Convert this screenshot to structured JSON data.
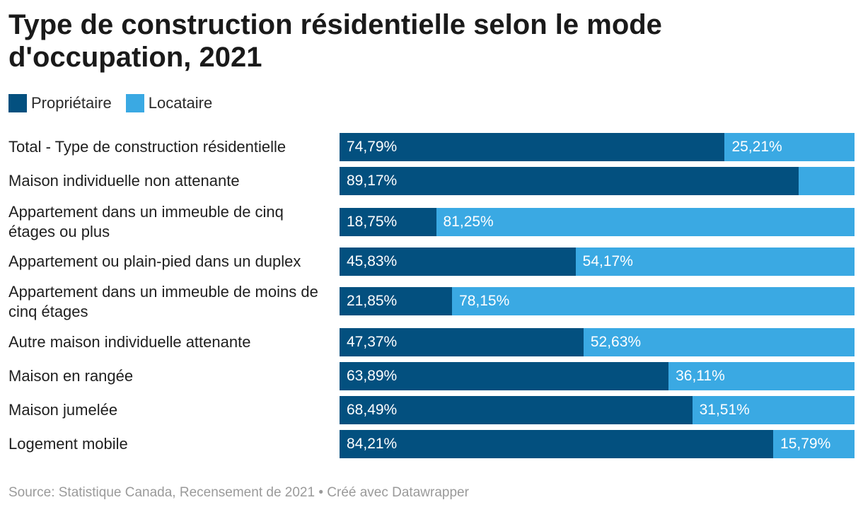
{
  "header": {
    "title": "Type de construction résidentielle selon le mode d'occupation, 2021"
  },
  "legend": {
    "items": [
      {
        "label": "Propriétaire",
        "color": "#03507f"
      },
      {
        "label": "Locataire",
        "color": "#3aa9e3"
      }
    ]
  },
  "footer": {
    "source": "Source: Statistique Canada, Recensement de 2021 • Créé avec Datawrapper"
  },
  "chart_data": {
    "type": "bar",
    "orientation": "horizontal",
    "stacked": true,
    "title": "Type de construction résidentielle selon le mode d'occupation, 2021",
    "xlim": [
      0,
      100
    ],
    "grid": false,
    "legend_position": "top-left",
    "categories": [
      "Total - Type de construction résidentielle",
      "Maison individuelle non attenante",
      "Appartement dans un immeuble de cinq étages ou plus",
      "Appartement ou plain-pied dans un duplex",
      "Appartement dans un immeuble de moins de cinq étages",
      "Autre maison individuelle attenante",
      "Maison en rangée",
      "Maison jumelée",
      "Logement mobile"
    ],
    "series": [
      {
        "name": "Propriétaire",
        "color": "#03507f",
        "values": [
          74.79,
          89.17,
          18.75,
          45.83,
          21.85,
          47.37,
          63.89,
          68.49,
          84.21
        ],
        "labels": [
          "74,79%",
          "89,17%",
          "18,75%",
          "45,83%",
          "21,85%",
          "47,37%",
          "63,89%",
          "68,49%",
          "84,21%"
        ]
      },
      {
        "name": "Locataire",
        "color": "#3aa9e3",
        "values": [
          25.21,
          10.83,
          81.25,
          54.17,
          78.15,
          52.63,
          36.11,
          31.51,
          15.79
        ],
        "labels": [
          "25,21%",
          "",
          "81,25%",
          "54,17%",
          "78,15%",
          "52,63%",
          "36,11%",
          "31,51%",
          "15,79%"
        ]
      }
    ]
  }
}
